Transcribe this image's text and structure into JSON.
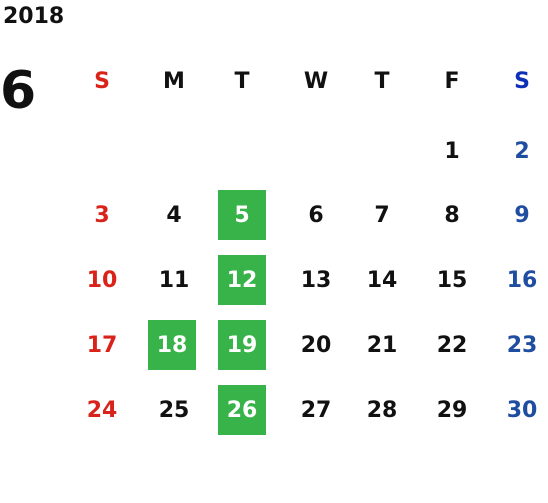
{
  "year": "2018",
  "month": "6",
  "weekday_headers": [
    "S",
    "M",
    "T",
    "W",
    "T",
    "F",
    "S"
  ],
  "days": {
    "r1": [
      "",
      "",
      "",
      "",
      "",
      "1",
      "2"
    ],
    "r2": [
      "3",
      "4",
      "5",
      "6",
      "7",
      "8",
      "9"
    ],
    "r3": [
      "10",
      "11",
      "12",
      "13",
      "14",
      "15",
      "16"
    ],
    "r4": [
      "17",
      "18",
      "19",
      "20",
      "21",
      "22",
      "23"
    ],
    "r5": [
      "24",
      "25",
      "26",
      "27",
      "28",
      "29",
      "30"
    ]
  },
  "highlighted_days": [
    "5",
    "12",
    "18",
    "19",
    "26"
  ],
  "colors": {
    "sunday": "#d9231a",
    "saturday_header": "#0e2fb8",
    "saturday_dates": "#1f4da0",
    "weekday": "#111111",
    "highlight": "#37b34a"
  }
}
